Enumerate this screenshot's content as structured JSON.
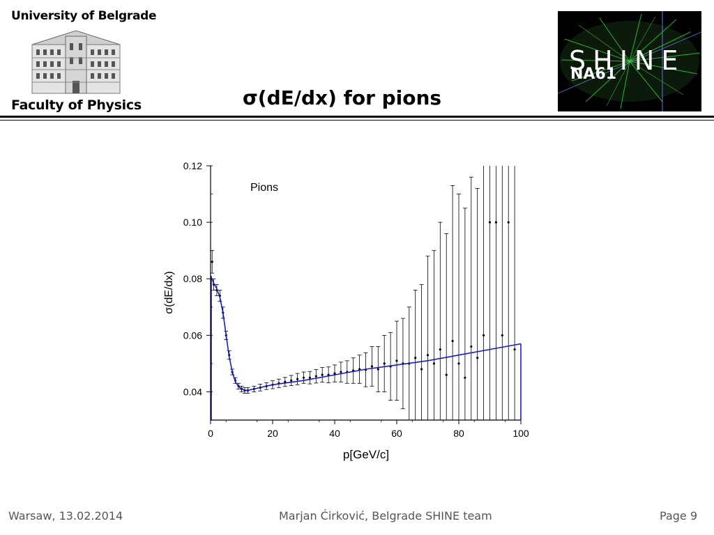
{
  "header": {
    "university": "University of Belgrade",
    "faculty": "Faculty of Physics",
    "slide_title": "σ(dE/dx) for pions",
    "logo_word": "SHINE",
    "logo_sub": "NA61"
  },
  "footer": {
    "left": "Warsaw, 13.02.2014",
    "center": "Marjan Ćirković, Belgrade SHINE team",
    "right": "Page 9"
  },
  "colors": {
    "fit_line": "#1a1acc",
    "data": "#000000",
    "rule": "#000000",
    "logo_bg": "#000000",
    "logo_tracks": "#33cc33"
  },
  "chart_data": {
    "type": "scatter",
    "title": "",
    "annotation": "Pions",
    "xlabel": "p[GeV/c]",
    "ylabel": "σ(dE/dx)",
    "xlim": [
      0,
      100
    ],
    "ylim": [
      0.03,
      0.12
    ],
    "xticks": [
      0,
      20,
      40,
      60,
      80,
      100
    ],
    "yticks": [
      0.04,
      0.06,
      0.08,
      0.1,
      0.12
    ],
    "xtick_labels": [
      "0",
      "20",
      "40",
      "60",
      "80",
      "100"
    ],
    "ytick_labels": [
      "0.04",
      "0.06",
      "0.08",
      "0.10",
      "0.12"
    ],
    "grid": false,
    "series": [
      {
        "kind": "points_with_errorbars",
        "x": [
          0.5,
          1,
          2,
          3,
          4,
          5,
          6,
          7,
          8,
          9,
          10,
          11,
          12,
          14,
          16,
          18,
          20,
          22,
          24,
          26,
          28,
          30,
          32,
          34,
          36,
          38,
          40,
          42,
          44,
          46,
          48,
          50,
          52,
          54,
          56,
          58,
          60,
          62,
          64,
          66,
          68,
          70,
          72,
          74,
          76,
          78,
          80,
          82,
          84,
          86,
          88,
          90,
          92,
          94,
          96,
          98
        ],
        "y": [
          0.086,
          0.078,
          0.076,
          0.074,
          0.068,
          0.06,
          0.053,
          0.047,
          0.044,
          0.042,
          0.041,
          0.0405,
          0.0405,
          0.041,
          0.0415,
          0.042,
          0.0425,
          0.043,
          0.0435,
          0.044,
          0.0445,
          0.045,
          0.045,
          0.0455,
          0.046,
          0.046,
          0.0465,
          0.047,
          0.047,
          0.0475,
          0.048,
          0.0478,
          0.049,
          0.048,
          0.05,
          0.049,
          0.051,
          0.05,
          0.05,
          0.052,
          0.048,
          0.053,
          0.05,
          0.055,
          0.046,
          0.058,
          0.05,
          0.045,
          0.056,
          0.052,
          0.06,
          0.1,
          0.1,
          0.06,
          0.1,
          0.055
        ],
        "err": [
          0.004,
          0.002,
          0.002,
          0.002,
          0.002,
          0.0015,
          0.0015,
          0.001,
          0.001,
          0.001,
          0.001,
          0.001,
          0.001,
          0.001,
          0.0012,
          0.0012,
          0.0014,
          0.0015,
          0.0016,
          0.0018,
          0.002,
          0.002,
          0.0022,
          0.0024,
          0.0026,
          0.0028,
          0.003,
          0.0035,
          0.004,
          0.0045,
          0.005,
          0.006,
          0.007,
          0.008,
          0.01,
          0.012,
          0.014,
          0.016,
          0.02,
          0.024,
          0.03,
          0.035,
          0.04,
          0.045,
          0.05,
          0.055,
          0.06,
          0.06,
          0.06,
          0.06,
          0.07,
          0.07,
          0.07,
          0.07,
          0.07,
          0.07
        ]
      },
      {
        "kind": "fit_line",
        "x": [
          0,
          1,
          2,
          3,
          4,
          5,
          6,
          7,
          8,
          9,
          10,
          11,
          12,
          14,
          20,
          30,
          40,
          50,
          60,
          70,
          80,
          90,
          100
        ],
        "y": [
          0.081,
          0.0785,
          0.0765,
          0.0735,
          0.068,
          0.06,
          0.0525,
          0.047,
          0.0435,
          0.042,
          0.041,
          0.0405,
          0.0405,
          0.041,
          0.0425,
          0.044,
          0.046,
          0.048,
          0.0495,
          0.051,
          0.053,
          0.055,
          0.057
        ]
      }
    ]
  }
}
